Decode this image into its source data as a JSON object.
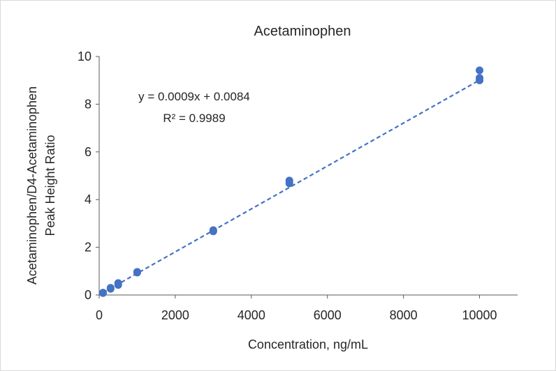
{
  "chart_data": {
    "type": "scatter",
    "title": "Acetaminophen",
    "xlabel": "Concentration, ng/mL",
    "ylabel_lines": [
      "Acetaminophen/D4-Acetaminophen",
      "Peak Height Ratio"
    ],
    "xlim": [
      0,
      11000
    ],
    "ylim": [
      0,
      10
    ],
    "x_ticks": [
      0,
      2000,
      4000,
      6000,
      8000,
      10000
    ],
    "y_ticks": [
      0,
      2,
      4,
      6,
      8,
      10
    ],
    "grid": false,
    "legend": "none",
    "series": [
      {
        "x": [
          100,
          100,
          300,
          300,
          500,
          500,
          1000,
          1000,
          3000,
          3000,
          5000,
          5000,
          10000,
          10000,
          10000
        ],
        "y": [
          0.08,
          0.1,
          0.26,
          0.3,
          0.42,
          0.5,
          0.94,
          0.97,
          2.67,
          2.72,
          4.68,
          4.8,
          9.0,
          9.1,
          9.42
        ],
        "color": "#4472c4"
      }
    ],
    "trendline": {
      "slope": 0.0009,
      "intercept": 0.0084,
      "color": "#4472c4",
      "style": "dashed",
      "equation": "y = 0.0009x + 0.0084",
      "r_squared": "R² = 0.9989"
    }
  }
}
